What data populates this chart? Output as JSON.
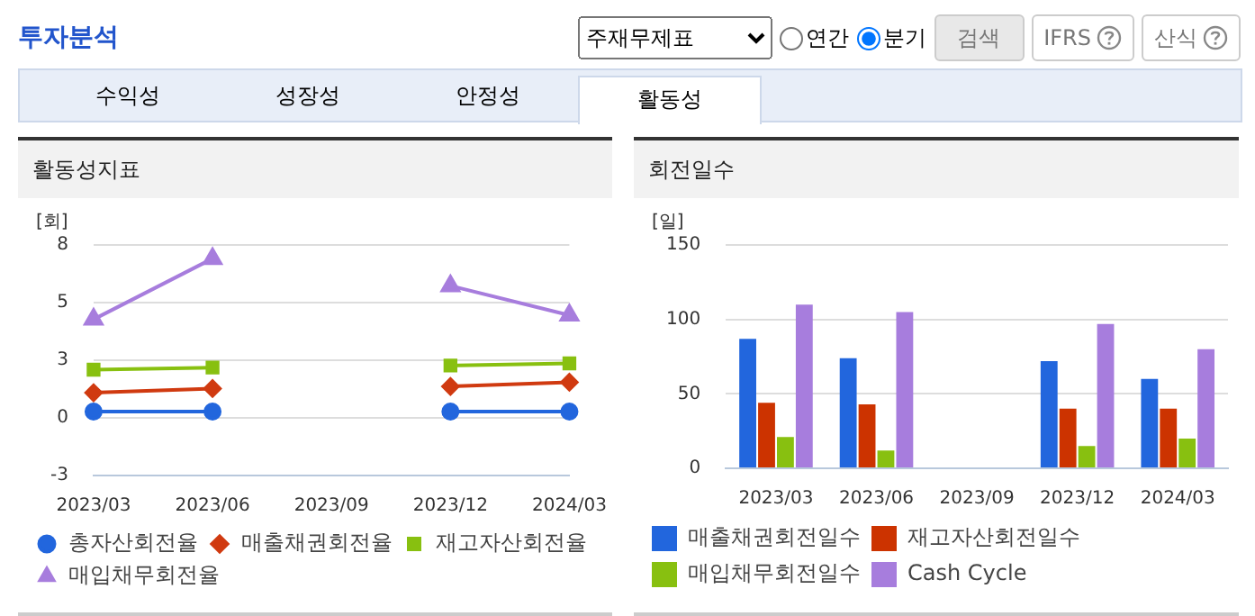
{
  "chart_data": [
    {
      "type": "other",
      "title": "투자분석",
      "annotations": [
        "주재무제표",
        "연간",
        "분기",
        "검색",
        "IFRS",
        "산식",
        "수익성",
        "성장성",
        "안정성",
        "활동성"
      ]
    },
    {
      "type": "line",
      "title": "활동성지표",
      "ylabel": "[회]",
      "categories": [
        "2023/03",
        "2023/06",
        "2023/09",
        "2023/12",
        "2024/03"
      ],
      "ylim": [
        -2.75,
        8.25
      ],
      "yticks": [
        {
          "value": -2.75,
          "label": "-3"
        },
        0,
        {
          "value": 2.75,
          "label": "3"
        },
        {
          "value": 5.5,
          "label": "5"
        },
        {
          "value": 8.25,
          "label": "8"
        }
      ],
      "grid": "y",
      "legend": "bottom",
      "series": [
        {
          "name": "총자산회전율",
          "color": "#2266dd",
          "marker": "circle",
          "values": [
            0.3,
            0.3,
            null,
            0.3,
            0.3
          ]
        },
        {
          "name": "매출채권회전율",
          "color": "#d03a10",
          "marker": "diamond",
          "values": [
            1.2,
            1.4,
            null,
            1.5,
            1.7
          ]
        },
        {
          "name": "재고자산회전율",
          "color": "#88c010",
          "marker": "square",
          "values": [
            2.3,
            2.4,
            null,
            2.5,
            2.6
          ]
        },
        {
          "name": "매입채무회전율",
          "color": "#a77ddd",
          "marker": "triangle",
          "values": [
            4.7,
            7.6,
            null,
            6.3,
            4.9
          ]
        }
      ]
    },
    {
      "type": "bar",
      "title": "회전일수",
      "ylabel": "[일]",
      "categories": [
        "2023/03",
        "2023/06",
        "2023/09",
        "2023/12",
        "2024/03"
      ],
      "ylim": [
        0,
        150
      ],
      "yticks": [
        0,
        50,
        100,
        150
      ],
      "grid": "y",
      "legend": "bottom",
      "series": [
        {
          "name": "매출채권회전일수",
          "color": "#2266dd",
          "values": [
            87,
            74,
            null,
            72,
            60
          ]
        },
        {
          "name": "재고자산회전일수",
          "color": "#cc3300",
          "values": [
            44,
            43,
            null,
            40,
            40
          ]
        },
        {
          "name": "매입채무회전일수",
          "color": "#88c010",
          "values": [
            21,
            12,
            null,
            15,
            20
          ]
        },
        {
          "name": "Cash Cycle",
          "color": "#a77ddd",
          "values": [
            110,
            105,
            null,
            97,
            80
          ]
        }
      ]
    }
  ]
}
